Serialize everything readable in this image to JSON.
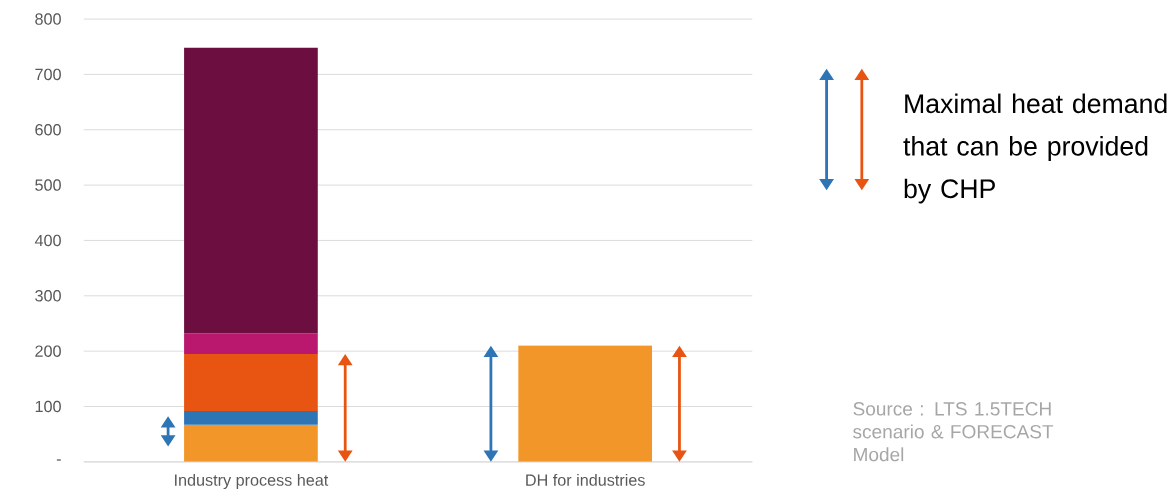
{
  "chart_data": {
    "type": "bar",
    "stacked": true,
    "categories": [
      "Industry process heat",
      "DH for industries"
    ],
    "series": [
      {
        "color": "#f39629",
        "values": [
          67,
          210
        ]
      },
      {
        "color": "#2e75b6",
        "values": [
          25,
          null
        ]
      },
      {
        "color": "#e85412",
        "values": [
          103,
          null
        ]
      },
      {
        "color": "#b9186e",
        "values": [
          37,
          null
        ]
      },
      {
        "color": "#6d0e40",
        "values": [
          516,
          null
        ]
      }
    ],
    "ylim": [
      0,
      800
    ],
    "yticks": [
      {
        "value": 0,
        "label": "-"
      },
      100,
      200,
      300,
      400,
      500,
      600,
      700,
      800
    ],
    "grid": "y",
    "annotations": [
      "Maximal heat demand that can be provided by CHP",
      "Source : LTS 1.5TECH scenario & FORECAST Model"
    ]
  }
}
